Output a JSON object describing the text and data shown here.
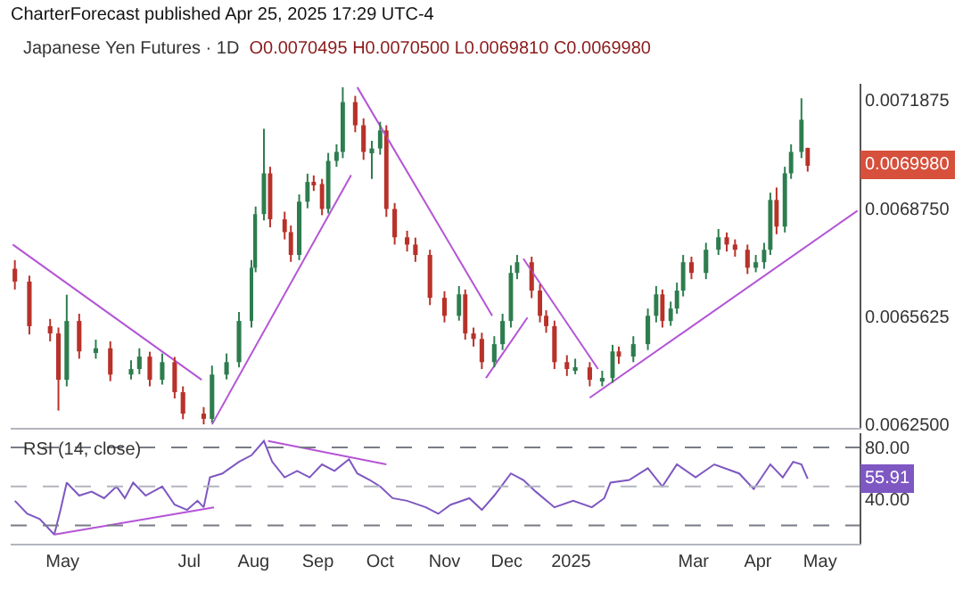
{
  "chart_data": [
    {
      "type": "candlestick",
      "title": "Japanese Yen Futures · 1D",
      "subtitle": "O0.0070495 H0.0070500 L0.0069810 C0.0069980",
      "annotations": [
        "CharterForecast published Apr 25, 2025 17:29 UTC-4",
        "0.0069980"
      ],
      "x": [
        "2024-04-08",
        "2024-04-15",
        "2024-04-25",
        "2024-04-29",
        "2024-05-03",
        "2024-05-09",
        "2024-05-17",
        "2024-05-24",
        "2024-06-03",
        "2024-06-07",
        "2024-06-12",
        "2024-06-18",
        "2024-06-24",
        "2024-06-28",
        "2024-07-08",
        "2024-07-12",
        "2024-07-19",
        "2024-07-25",
        "2024-07-31",
        "2024-08-02",
        "2024-08-06",
        "2024-08-09",
        "2024-08-16",
        "2024-08-19",
        "2024-08-23",
        "2024-08-27",
        "2024-08-30",
        "2024-09-03",
        "2024-09-06",
        "2024-09-10",
        "2024-09-13",
        "2024-09-19",
        "2024-09-23",
        "2024-09-27",
        "2024-10-01",
        "2024-10-04",
        "2024-10-08",
        "2024-10-14",
        "2024-10-18",
        "2024-10-25",
        "2024-11-01",
        "2024-11-08",
        "2024-11-11",
        "2024-11-15",
        "2024-11-19",
        "2024-11-25",
        "2024-11-29",
        "2024-12-03",
        "2024-12-06",
        "2024-12-13",
        "2024-12-17",
        "2024-12-20",
        "2024-12-24",
        "2024-12-30",
        "2025-01-03",
        "2025-01-10",
        "2025-01-16",
        "2025-01-21",
        "2025-01-24",
        "2025-01-31",
        "2025-02-07",
        "2025-02-11",
        "2025-02-14",
        "2025-02-18",
        "2025-02-21",
        "2025-02-24",
        "2025-02-28",
        "2025-03-07",
        "2025-03-13",
        "2025-03-17",
        "2025-03-21",
        "2025-03-27",
        "2025-03-31",
        "2025-04-04",
        "2025-04-07",
        "2025-04-10",
        "2025-04-14",
        "2025-04-17",
        "2025-04-22",
        "2025-04-25"
      ],
      "ohlc": [
        [
          0.0067,
          0.006725,
          0.00664,
          0.006663
        ],
        [
          0.006663,
          0.00668,
          0.00651,
          0.006534
        ],
        [
          0.006534,
          0.006555,
          0.00649,
          0.006513
        ],
        [
          0.006513,
          0.00653,
          0.00629,
          0.006379
        ],
        [
          0.006379,
          0.006625,
          0.00636,
          0.006549
        ],
        [
          0.006549,
          0.00657,
          0.00644,
          0.006461
        ],
        [
          0.006461,
          0.006495,
          0.00644,
          0.00647
        ],
        [
          0.00647,
          0.00649,
          0.006375,
          0.006394
        ],
        [
          0.006394,
          0.006435,
          0.00638,
          0.00641
        ],
        [
          0.00641,
          0.00647,
          0.006395,
          0.006446
        ],
        [
          0.006446,
          0.00646,
          0.00636,
          0.006379
        ],
        [
          0.006379,
          0.006455,
          0.006365,
          0.00643
        ],
        [
          0.00643,
          0.006445,
          0.006325,
          0.006343
        ],
        [
          0.006343,
          0.00636,
          0.006265,
          0.006281
        ],
        [
          0.006281,
          0.0063,
          0.00625,
          0.006266
        ],
        [
          0.006266,
          0.00642,
          0.006255,
          0.006394
        ],
        [
          0.006394,
          0.006455,
          0.00638,
          0.00643
        ],
        [
          0.00643,
          0.006575,
          0.006415,
          0.006549
        ],
        [
          0.006549,
          0.006725,
          0.00653,
          0.006703
        ],
        [
          0.006703,
          0.00688,
          0.00669,
          0.006858
        ],
        [
          0.006858,
          0.007105,
          0.00684,
          0.006976
        ],
        [
          0.006976,
          0.006995,
          0.00682,
          0.006843
        ],
        [
          0.006843,
          0.006865,
          0.006785,
          0.006806
        ],
        [
          0.006806,
          0.006825,
          0.00672,
          0.00674
        ],
        [
          0.00674,
          0.006915,
          0.006725,
          0.006894
        ],
        [
          0.006894,
          0.006975,
          0.006875,
          0.006951
        ],
        [
          0.006951,
          0.00697,
          0.006925,
          0.006945
        ],
        [
          0.006945,
          0.00696,
          0.006855,
          0.006873
        ],
        [
          0.006873,
          0.007035,
          0.00686,
          0.007012
        ],
        [
          0.007012,
          0.00706,
          0.006995,
          0.007038
        ],
        [
          0.007038,
          0.007225,
          0.00702,
          0.007182
        ],
        [
          0.007182,
          0.0072,
          0.007095,
          0.007115
        ],
        [
          0.007115,
          0.007135,
          0.007015,
          0.007038
        ],
        [
          0.007038,
          0.00707,
          0.00696,
          0.007048
        ],
        [
          0.007048,
          0.007125,
          0.00703,
          0.0071
        ],
        [
          0.0071,
          0.007115,
          0.00685,
          0.006873
        ],
        [
          0.006873,
          0.00689,
          0.00677,
          0.006791
        ],
        [
          0.006791,
          0.00681,
          0.00675,
          0.00677
        ],
        [
          0.00677,
          0.00679,
          0.00672,
          0.00674
        ],
        [
          0.00674,
          0.006755,
          0.006595,
          0.006616
        ],
        [
          0.006616,
          0.006635,
          0.006545,
          0.006564
        ],
        [
          0.006564,
          0.00665,
          0.00655,
          0.006626
        ],
        [
          0.006626,
          0.00664,
          0.006495,
          0.006513
        ],
        [
          0.006513,
          0.00653,
          0.006475,
          0.006497
        ],
        [
          0.006497,
          0.006515,
          0.00641,
          0.00643
        ],
        [
          0.00643,
          0.006505,
          0.006415,
          0.006482
        ],
        [
          0.006482,
          0.00657,
          0.006465,
          0.006549
        ],
        [
          0.006549,
          0.00671,
          0.00653,
          0.006688
        ],
        [
          0.006688,
          0.00674,
          0.00667,
          0.006719
        ],
        [
          0.006719,
          0.006735,
          0.006615,
          0.006637
        ],
        [
          0.006637,
          0.006655,
          0.006545,
          0.006564
        ],
        [
          0.006564,
          0.00658,
          0.006515,
          0.006534
        ],
        [
          0.006534,
          0.00655,
          0.00641,
          0.00643
        ],
        [
          0.00643,
          0.00645,
          0.00639,
          0.00641
        ],
        [
          0.00641,
          0.00644,
          0.006395,
          0.006415
        ],
        [
          0.006415,
          0.00643,
          0.00636,
          0.006379
        ],
        [
          0.006379,
          0.006405,
          0.00636,
          0.006384
        ],
        [
          0.006384,
          0.00648,
          0.00637,
          0.006461
        ],
        [
          0.006461,
          0.006475,
          0.006425,
          0.006446
        ],
        [
          0.006446,
          0.006505,
          0.00643,
          0.006482
        ],
        [
          0.006482,
          0.006585,
          0.006465,
          0.006564
        ],
        [
          0.006564,
          0.00665,
          0.006545,
          0.006626
        ],
        [
          0.006626,
          0.00664,
          0.00653,
          0.006549
        ],
        [
          0.006549,
          0.006605,
          0.006535,
          0.006585
        ],
        [
          0.006585,
          0.00666,
          0.00657,
          0.006637
        ],
        [
          0.006637,
          0.00674,
          0.00662,
          0.006719
        ],
        [
          0.006719,
          0.006735,
          0.00667,
          0.006688
        ],
        [
          0.006688,
          0.006775,
          0.00667,
          0.006755
        ],
        [
          0.006755,
          0.006815,
          0.00674,
          0.006791
        ],
        [
          0.006791,
          0.006805,
          0.00675,
          0.00677
        ],
        [
          0.00677,
          0.006785,
          0.006735,
          0.006755
        ],
        [
          0.006755,
          0.00677,
          0.006685,
          0.006703
        ],
        [
          0.006703,
          0.00674,
          0.00669,
          0.006719
        ],
        [
          0.006719,
          0.006775,
          0.0067,
          0.006755
        ],
        [
          0.006755,
          0.00692,
          0.00674,
          0.006899
        ],
        [
          0.006899,
          0.006935,
          0.0068,
          0.006822
        ],
        [
          0.006822,
          0.006995,
          0.006805,
          0.006976
        ],
        [
          0.006976,
          0.00706,
          0.00696,
          0.007038
        ],
        [
          0.007038,
          0.007193,
          0.00702,
          0.007131
        ],
        [
          0.0070495,
          0.00705,
          0.006981,
          0.006998
        ]
      ],
      "series": [
        {
          "type": "line",
          "x": [
            "2024-04-07",
            "2024-07-07"
          ],
          "values": [
            0.00677,
            0.006379
          ],
          "color": "#b455d6"
        },
        {
          "type": "line",
          "x": [
            "2024-07-12",
            "2024-09-17"
          ],
          "values": [
            0.00625,
            0.006971
          ],
          "color": "#b455d6"
        },
        {
          "type": "line",
          "x": [
            "2024-09-20",
            "2024-11-24"
          ],
          "values": [
            0.007225,
            0.006564
          ],
          "color": "#b455d6"
        },
        {
          "type": "line",
          "x": [
            "2024-11-21",
            "2024-12-11"
          ],
          "values": [
            0.006384,
            0.006559
          ],
          "color": "#b455d6"
        },
        {
          "type": "line",
          "x": [
            "2024-12-09",
            "2025-01-14"
          ],
          "values": [
            0.006729,
            0.00641
          ],
          "color": "#b455d6"
        },
        {
          "type": "line",
          "x": [
            "2025-01-10",
            "2025-05-19"
          ],
          "values": [
            0.006327,
            0.006868
          ],
          "color": "#b455d6"
        }
      ],
      "xlim": [
        "2024-04-06",
        "2025-05-20"
      ],
      "ylim": [
        0.00624,
        0.007235
      ],
      "yticks": [
        {
          "value": 0.00625,
          "label": "0.0062500"
        },
        {
          "value": 0.0065625,
          "label": "0.0065625"
        },
        {
          "value": 0.006875,
          "label": "0.0068750"
        },
        {
          "value": 0.0071875,
          "label": "0.0071875"
        }
      ],
      "tick_labels": "y",
      "grid": false
    },
    {
      "type": "line",
      "title": "RSI (14, close)",
      "annotations": [
        "55.91"
      ],
      "series": [
        {
          "color": "#7e57c2",
          "x": [
            "2024-04-08",
            "2024-04-14",
            "2024-04-20",
            "2024-04-27",
            "2024-04-30",
            "2024-05-03",
            "2024-05-09",
            "2024-05-15",
            "2024-05-21",
            "2024-05-27",
            "2024-05-31",
            "2024-06-04",
            "2024-06-10",
            "2024-06-18",
            "2024-06-24",
            "2024-06-30",
            "2024-07-05",
            "2024-07-08",
            "2024-07-11",
            "2024-07-17",
            "2024-07-25",
            "2024-07-31",
            "2024-08-06",
            "2024-08-10",
            "2024-08-16",
            "2024-08-22",
            "2024-08-28",
            "2024-09-03",
            "2024-09-09",
            "2024-09-16",
            "2024-09-20",
            "2024-09-26",
            "2024-10-01",
            "2024-10-07",
            "2024-10-14",
            "2024-10-23",
            "2024-10-29",
            "2024-11-04",
            "2024-11-13",
            "2024-11-19",
            "2024-11-25",
            "2024-12-03",
            "2024-12-09",
            "2024-12-15",
            "2024-12-24",
            "2025-01-02",
            "2025-01-11",
            "2025-01-17",
            "2025-01-20",
            "2025-01-29",
            "2025-02-07",
            "2025-02-14",
            "2025-02-21",
            "2025-03-02",
            "2025-03-11",
            "2025-03-23",
            "2025-03-30",
            "2025-04-07",
            "2025-04-13",
            "2025-04-18",
            "2025-04-22",
            "2025-04-25"
          ],
          "values": [
            39,
            29,
            25,
            13,
            32,
            53,
            43,
            46,
            41,
            50,
            41,
            53,
            43,
            50,
            36,
            32,
            39,
            34,
            57,
            60,
            69,
            74,
            85,
            69,
            57,
            62,
            57,
            67,
            62,
            71,
            60,
            55,
            50,
            41,
            39,
            34,
            29,
            36,
            41,
            32,
            43,
            60,
            55,
            46,
            34,
            39,
            34,
            41,
            53,
            55,
            64,
            50,
            67,
            57,
            67,
            60,
            48,
            67,
            57,
            69,
            67,
            55.91
          ]
        },
        {
          "color": "#b455d6",
          "x": [
            "2024-04-27",
            "2024-07-13"
          ],
          "values": [
            13,
            34
          ]
        },
        {
          "color": "#b455d6",
          "x": [
            "2024-08-08",
            "2024-10-04"
          ],
          "values": [
            85,
            67
          ]
        }
      ],
      "ref_lines": [
        {
          "axis": "y",
          "value": 80,
          "color": "#787b86",
          "line_style": "dashed"
        },
        {
          "axis": "y",
          "value": 50,
          "color": "#b2b5be",
          "line_style": "dashed"
        },
        {
          "axis": "y",
          "value": 20,
          "color": "#787b86",
          "line_style": "dashed"
        }
      ],
      "xlim": [
        "2024-04-06",
        "2025-05-20"
      ],
      "xticks": [
        {
          "value": "2024-05-01",
          "label": "May"
        },
        {
          "value": "2024-07-01",
          "label": "Jul"
        },
        {
          "value": "2024-08-01",
          "label": "Aug"
        },
        {
          "value": "2024-09-01",
          "label": "Sep"
        },
        {
          "value": "2024-10-01",
          "label": "Oct"
        },
        {
          "value": "2024-11-01",
          "label": "Nov"
        },
        {
          "value": "2024-12-01",
          "label": "Dec"
        },
        {
          "value": "2025-01-01",
          "label": "2025"
        },
        {
          "value": "2025-03-01",
          "label": "Mar"
        },
        {
          "value": "2025-04-01",
          "label": "Apr"
        },
        {
          "value": "2025-05-01",
          "label": "May"
        }
      ],
      "ylim": [
        6,
        91
      ],
      "yticks": [
        {
          "value": 80,
          "label": "80.00"
        },
        {
          "value": 40,
          "label": "40.00"
        }
      ],
      "grid": false
    }
  ]
}
